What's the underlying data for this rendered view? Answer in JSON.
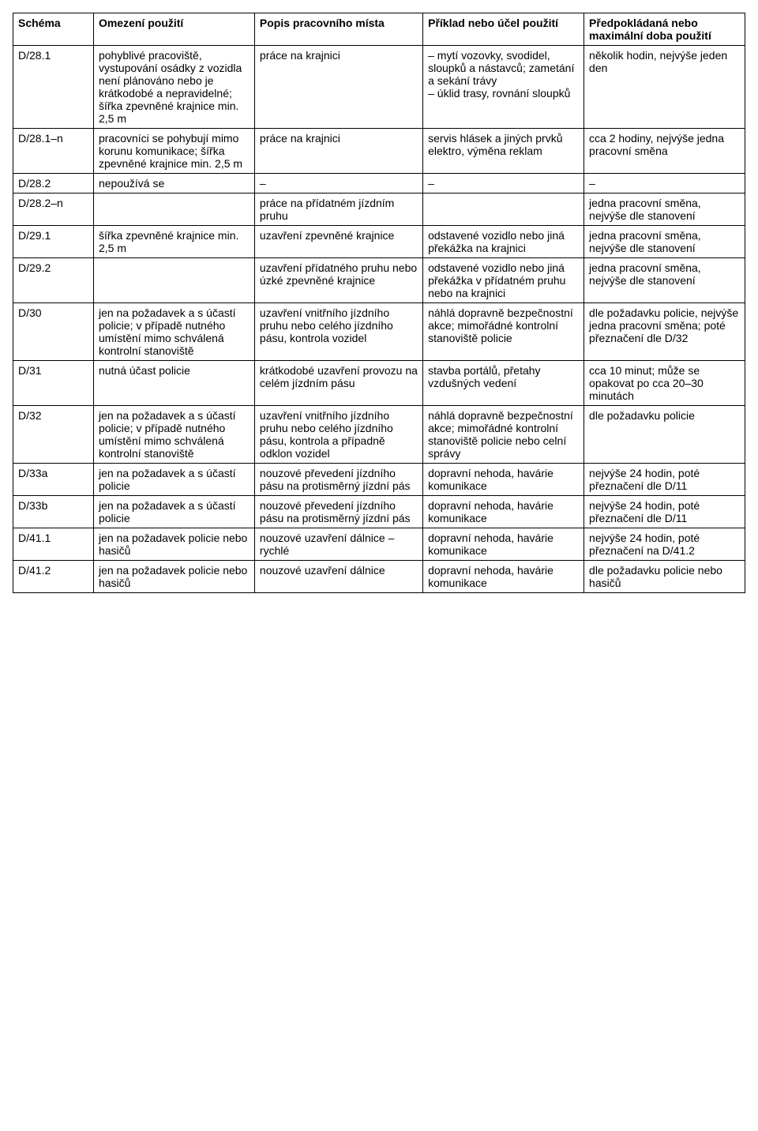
{
  "table": {
    "columns": [
      "Schéma",
      "Omezení použití",
      "Popis pracovního místa",
      "Příklad nebo účel použití",
      "Předpokládaná nebo maximální doba použití"
    ],
    "rows": [
      {
        "schema": "D/28.1",
        "limit": "pohyblivé pracoviště, vystupování osádky z vozidla není plánováno nebo je krátkodobé a nepravidelné; šířka zpevněné krajnice min. 2,5 m",
        "desc": "práce na krajnici",
        "example": "– mytí vozovky, svodidel, sloupků a nástavců; zametání a sekání trávy\n– úklid trasy, rovnání sloupků",
        "duration": "několik hodin, nejvýše jeden den"
      },
      {
        "schema": "D/28.1–n",
        "limit": "pracovníci se pohybují mimo korunu komunikace; šířka zpevněné krajnice min. 2,5 m",
        "desc": "práce na krajnici",
        "example": "servis hlásek a jiných prvků elektro, výměna reklam",
        "duration": "cca 2 hodiny, nejvýše jedna pracovní směna"
      },
      {
        "schema": "D/28.2",
        "limit": "nepoužívá se",
        "desc": "–",
        "example": "–",
        "duration": "–"
      },
      {
        "schema": "D/28.2–n",
        "limit": "",
        "desc": "práce na přídatném jízdním pruhu",
        "example": "",
        "duration": "jedna pracovní směna, nejvýše dle stanovení"
      },
      {
        "schema": "D/29.1",
        "limit": "šířka zpevněné krajnice min. 2,5 m",
        "desc": "uzavření zpevněné krajnice",
        "example": "odstavené vozidlo nebo jiná překážka na krajnici",
        "duration": "jedna pracovní směna, nejvýše dle stanovení"
      },
      {
        "schema": "D/29.2",
        "limit": "",
        "desc": "uzavření přídatného pruhu nebo úzké zpevněné krajnice",
        "example": "odstavené vozidlo nebo jiná překážka v přídatném pruhu nebo na krajnici",
        "duration": "jedna pracovní směna, nejvýše dle stanovení"
      },
      {
        "schema": "D/30",
        "limit": "jen na požadavek a s účastí policie; v případě nutného umístění mimo schválená kontrolní stanoviště",
        "desc": "uzavření vnitřního jízdního pruhu nebo celého jízdního pásu, kontrola vozidel",
        "example": "náhlá dopravně bezpečnostní akce; mimořádné kontrolní stanoviště policie",
        "duration": "dle požadavku policie, nejvýše jedna pracovní směna; poté přeznačení dle D/32"
      },
      {
        "schema": "D/31",
        "limit": "nutná účast policie",
        "desc": "krátkodobé uzavření provozu na celém jízdním pásu",
        "example": "stavba portálů, přetahy vzdušných vedení",
        "duration": "cca 10 minut; může se opakovat po cca 20–30 minutách"
      },
      {
        "schema": "D/32",
        "limit": "jen na požadavek a s účastí policie; v případě nutného umístění mimo schválená kontrolní stanoviště",
        "desc": "uzavření vnitřního jízdního pruhu nebo celého jízdního pásu, kontrola a případně odklon vozidel",
        "example": "náhlá dopravně bezpečnostní akce; mimořádné kontrolní stanoviště policie nebo celní správy",
        "duration": "dle požadavku policie"
      },
      {
        "schema": "D/33a",
        "limit": "jen na požadavek a s účastí policie",
        "desc": "nouzové převedení jízdního pásu na protisměrný jízdní pás",
        "example": "dopravní nehoda, havárie komunikace",
        "duration": "nejvýše 24 hodin, poté přeznačení dle D/11"
      },
      {
        "schema": "D/33b",
        "limit": "jen na požadavek a s účastí policie",
        "desc": "nouzové převedení jízdního pásu na protisměrný jízdní pás",
        "example": "dopravní nehoda, havárie komunikace",
        "duration": "nejvýše 24 hodin, poté přeznačení dle D/11"
      },
      {
        "schema": "D/41.1",
        "limit": "jen na požadavek policie nebo hasičů",
        "desc": "nouzové uzavření dálnice – rychlé",
        "example": "dopravní nehoda, havárie komunikace",
        "duration": "nejvýše 24 hodin, poté přeznačení na D/41.2"
      },
      {
        "schema": "D/41.2",
        "limit": "jen na požadavek policie nebo hasičů",
        "desc": "nouzové uzavření dálnice",
        "example": "dopravní nehoda, havárie komunikace",
        "duration": "dle požadavku policie nebo hasičů"
      }
    ]
  }
}
